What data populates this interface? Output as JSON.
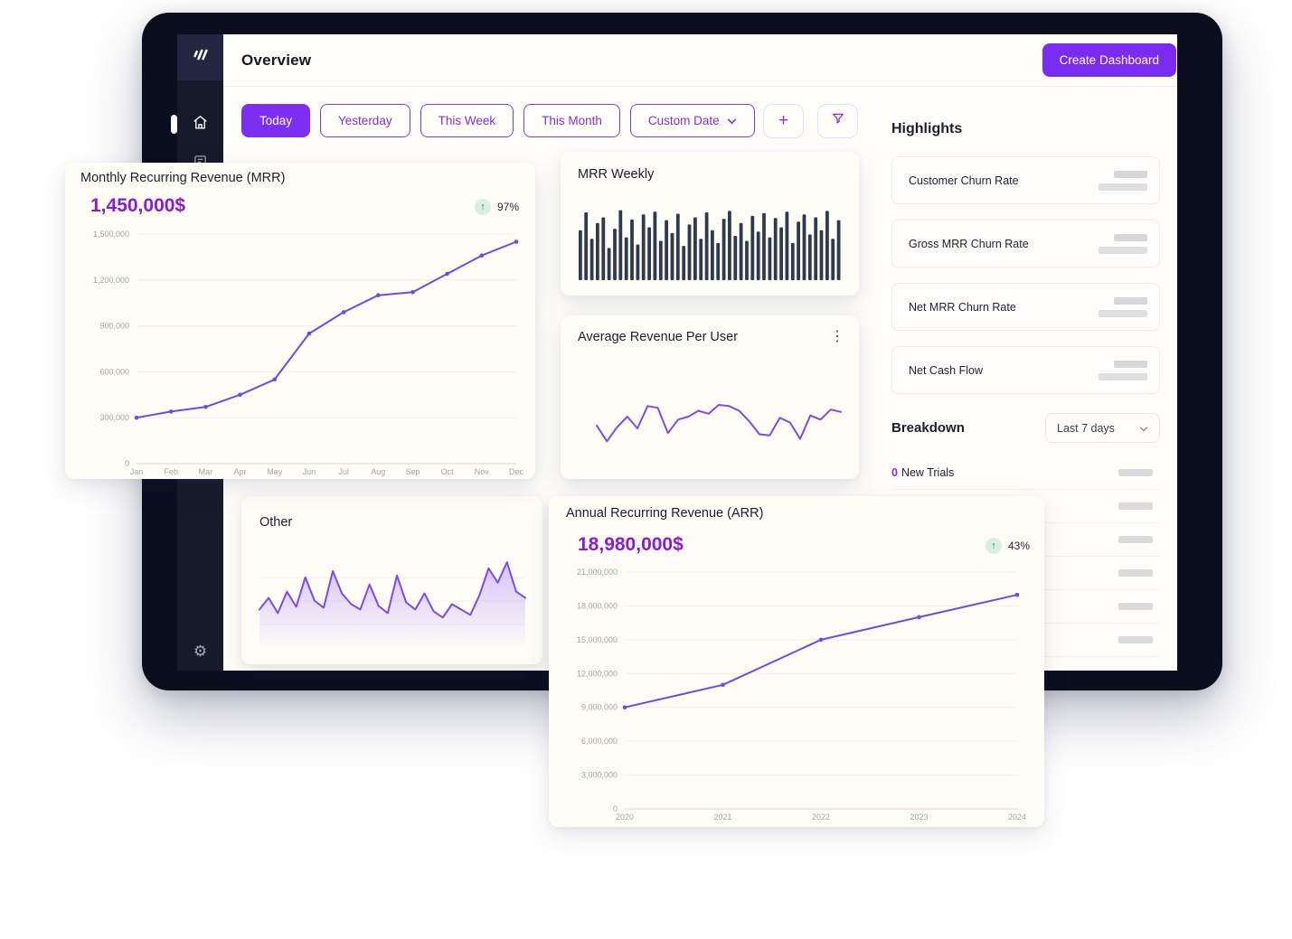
{
  "header": {
    "title": "Overview",
    "create_button": "Create Dashboard"
  },
  "filters": {
    "items": [
      "Today",
      "Yesterday",
      "This Week",
      "This Month",
      "Custom Date"
    ],
    "active": "Today",
    "add_button": "+"
  },
  "highlights": {
    "title": "Highlights",
    "items": [
      "Customer Churn Rate",
      "Gross MRR Churn Rate",
      "Net MRR Churn Rate",
      "Net Cash Flow"
    ]
  },
  "breakdown": {
    "title": "Breakdown",
    "range_selector": "Last 7 days",
    "new_trials_count": "0",
    "new_trials_label": "New Trials"
  },
  "cards": {
    "mrr": {
      "title": "Monthly Recurring Revenue (MRR)",
      "value": "1,450,000$",
      "change": "97%",
      "change_direction": "up"
    },
    "mrr_weekly": {
      "title": "MRR Weekly"
    },
    "arpu": {
      "title": "Average Revenue Per User"
    },
    "other": {
      "title": "Other"
    },
    "arr": {
      "title": "Annual Recurring Revenue (ARR)",
      "value": "18,980,000$",
      "change": "43%",
      "change_direction": "up"
    }
  },
  "colors": {
    "accent_purple": "#7c2ff2",
    "value_purple": "#8a1bd8",
    "chart_purple": "#6d4af0",
    "bar_navy": "#2e3a4d",
    "positive_green": "#259a4a",
    "green_badge_bg": "#d9f0de",
    "frame_dark": "#0b0e1f",
    "sidebar_dark": "#171a2b"
  },
  "chart_data": [
    {
      "id": "mrr",
      "type": "line",
      "title": "Monthly Recurring Revenue (MRR)",
      "categories": [
        "Jan",
        "Feb",
        "Mar",
        "Apr",
        "May",
        "Jun",
        "Jul",
        "Aug",
        "Sep",
        "Oct",
        "Nov",
        "Dec"
      ],
      "values": [
        300000,
        340000,
        370000,
        450000,
        550000,
        850000,
        990000,
        1100000,
        1120000,
        1240000,
        1360000,
        1450000
      ],
      "ylim": [
        0,
        1500000
      ],
      "yticks": [
        0,
        300000,
        600000,
        900000,
        1200000,
        1500000
      ],
      "color": "#6d4af0",
      "markers": true,
      "grid": true,
      "legend": false
    },
    {
      "id": "mrr_weekly",
      "type": "bar",
      "title": "MRR Weekly",
      "values": [
        70,
        95,
        58,
        80,
        88,
        45,
        72,
        98,
        60,
        85,
        50,
        92,
        74,
        96,
        55,
        84,
        66,
        93,
        48,
        78,
        88,
        58,
        95,
        70,
        52,
        86,
        97,
        62,
        80,
        55,
        90,
        68,
        94,
        60,
        87,
        74,
        96,
        52,
        82,
        92,
        64,
        88,
        70,
        97,
        58,
        84
      ],
      "ylim": [
        0,
        100
      ],
      "color": "#2e3a4d",
      "grid": false
    },
    {
      "id": "arpu",
      "type": "line",
      "title": "Average Revenue Per User",
      "values": [
        45,
        18,
        42,
        60,
        40,
        78,
        75,
        32,
        55,
        60,
        70,
        65,
        80,
        78,
        70,
        52,
        30,
        28,
        58,
        50,
        22,
        62,
        55,
        72,
        68
      ],
      "ylim": [
        0,
        100
      ],
      "color": "#7a4bf0",
      "markers": false,
      "grid": false
    },
    {
      "id": "other",
      "type": "area",
      "title": "Other",
      "values": [
        42,
        55,
        38,
        62,
        45,
        78,
        52,
        44,
        85,
        60,
        48,
        42,
        70,
        46,
        38,
        80,
        50,
        42,
        60,
        40,
        33,
        48,
        42,
        36,
        58,
        88,
        72,
        95,
        62,
        55
      ],
      "ylim": [
        0,
        100
      ],
      "color": "#7a4bf0",
      "area": true,
      "grid": false
    },
    {
      "id": "arr",
      "type": "line",
      "title": "Annual Recurring Revenue (ARR)",
      "categories": [
        "2020",
        "2021",
        "2022",
        "2023",
        "2024"
      ],
      "values": [
        9000000,
        11000000,
        15000000,
        17000000,
        18980000
      ],
      "ylim": [
        0,
        21000000
      ],
      "yticks": [
        0,
        3000000,
        6000000,
        9000000,
        12000000,
        15000000,
        18000000,
        21000000
      ],
      "color": "#6d4af0",
      "markers": true,
      "grid": true,
      "legend": false
    }
  ]
}
